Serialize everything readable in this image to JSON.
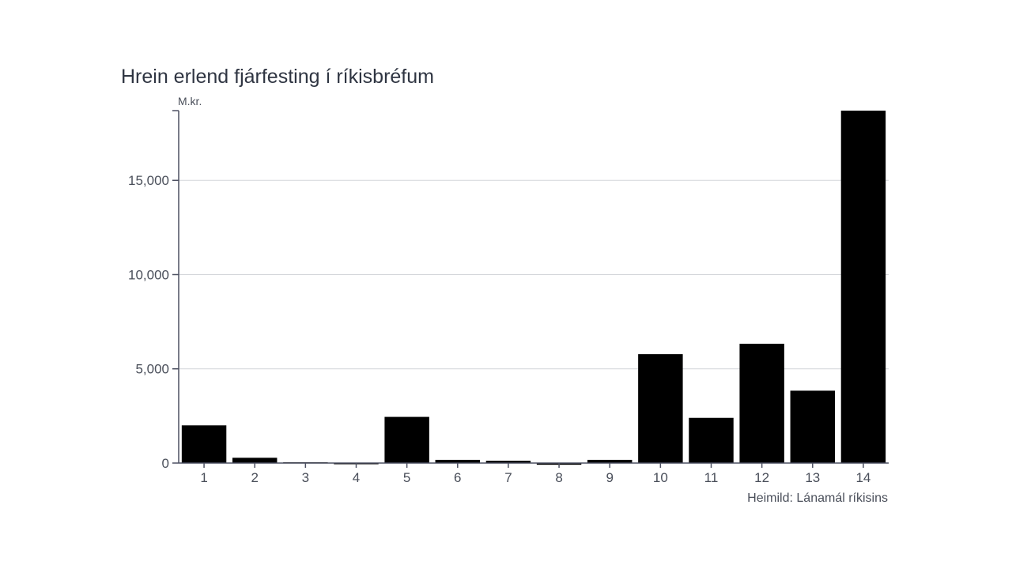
{
  "chart_data": {
    "type": "bar",
    "title": "Hrein erlend fjárfesting í ríkisbréfum",
    "unit_label": "M.kr.",
    "source": "Heimild: Lánamál ríkisins",
    "categories": [
      "1",
      "2",
      "3",
      "4",
      "5",
      "6",
      "7",
      "8",
      "9",
      "10",
      "11",
      "12",
      "13",
      "14"
    ],
    "values": [
      2000,
      280,
      40,
      -40,
      2450,
      170,
      120,
      -90,
      170,
      5780,
      2400,
      6330,
      3840,
      18700
    ],
    "ylim": [
      0,
      18700
    ],
    "yticks": [
      0,
      5000,
      10000,
      15000
    ],
    "ytick_labels": [
      "0",
      "5,000",
      "10,000",
      "15,000"
    ],
    "bar_color": "#000000",
    "grid": true
  }
}
